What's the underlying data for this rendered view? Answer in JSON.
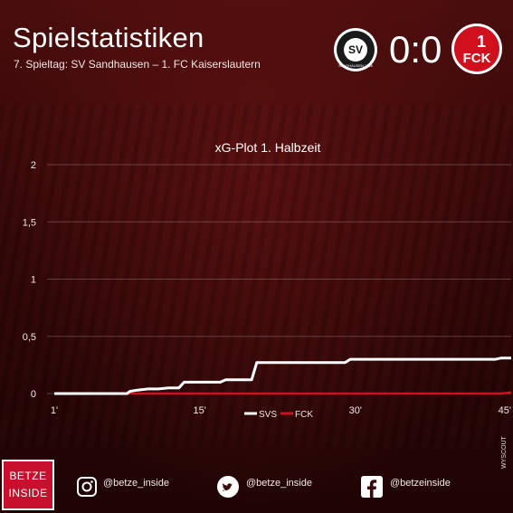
{
  "header": {
    "title": "Spielstatistiken",
    "subtitle": "7. Spieltag: SV Sandhausen – 1. FC Kaiserslautern",
    "score": "0:0",
    "home_logo_text": "SV",
    "home_logo_ring": "SANDHAUSEN 1916",
    "away_logo_text": "FCK",
    "away_logo_digit": "1"
  },
  "chart_data": {
    "type": "line",
    "title": "xG-Plot 1. Halbzeit",
    "xlabel": "",
    "ylabel": "",
    "xlim": [
      1,
      45
    ],
    "ylim": [
      0,
      2
    ],
    "x_ticks": [
      "1'",
      "15'",
      "30'",
      "45'"
    ],
    "x_tick_values": [
      1,
      15,
      30,
      45
    ],
    "y_ticks": [
      "0",
      "0,5",
      "1",
      "1,5",
      "2"
    ],
    "y_tick_values": [
      0,
      0.5,
      1,
      1.5,
      2
    ],
    "grid": "horizontal",
    "legend": "bottom-center",
    "series": [
      {
        "name": "SVS",
        "color": "#ffffff",
        "points": [
          [
            1,
            0
          ],
          [
            8,
            0
          ],
          [
            8.3,
            0.02
          ],
          [
            9,
            0.03
          ],
          [
            10,
            0.04
          ],
          [
            11,
            0.04
          ],
          [
            12,
            0.05
          ],
          [
            13,
            0.05
          ],
          [
            13.5,
            0.1
          ],
          [
            17,
            0.1
          ],
          [
            17.5,
            0.12
          ],
          [
            20,
            0.12
          ],
          [
            20.5,
            0.27
          ],
          [
            29,
            0.27
          ],
          [
            29.5,
            0.3
          ],
          [
            43.5,
            0.3
          ],
          [
            44,
            0.31
          ],
          [
            45,
            0.31
          ]
        ]
      },
      {
        "name": "FCK",
        "color": "#d0101c",
        "points": [
          [
            1,
            0
          ],
          [
            44,
            0
          ],
          [
            45,
            0.01
          ]
        ]
      }
    ]
  },
  "footer": {
    "brand_line1": "BETZE",
    "brand_line2": "INSIDE",
    "instagram": "@betze_inside",
    "twitter": "@betze_inside",
    "facebook": "@betzeinside",
    "credit": "WYSCOUT",
    "instagram_icon": "instagram-icon",
    "twitter_icon": "twitter-icon",
    "facebook_icon": "facebook-icon"
  }
}
